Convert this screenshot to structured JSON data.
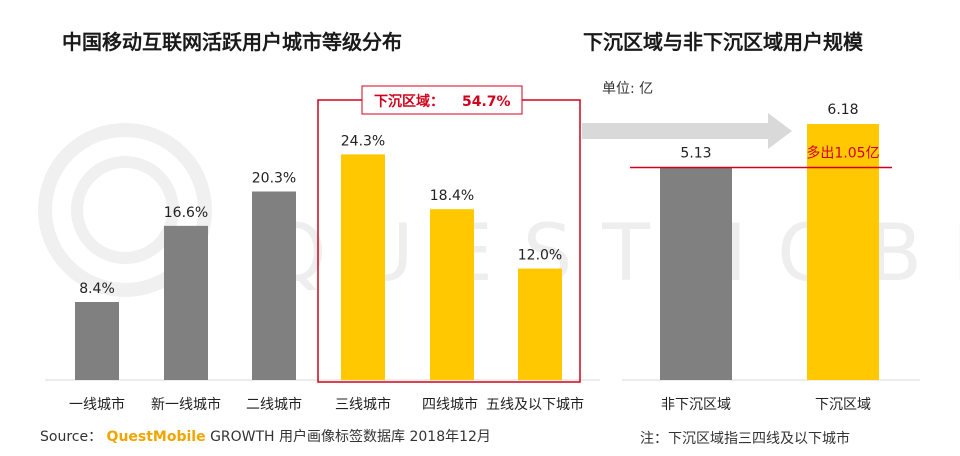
{
  "left_title": "中国移动互联网活跃用户城市等级分布",
  "right_title": "下沉区域与非下沉区域用户规模",
  "unit_label": "单位: 亿",
  "source": {
    "prefix": "Source：",
    "brand": "QuestMobile",
    "rest": "GROWTH 用户画像标签数据库 2018年12月"
  },
  "note": "注：下沉区域指三四线及以下城市",
  "watermark": "QUESTMOBILE",
  "colors": {
    "gray": "#808080",
    "yellow": "#ffc800",
    "highlight": "#d0021b"
  },
  "chart_data": [
    {
      "type": "bar",
      "title": "中国移动互联网活跃用户城市等级分布",
      "categories": [
        "一线城市",
        "新一线城市",
        "二线城市",
        "三线城市",
        "四线城市",
        "五线及以下城市"
      ],
      "values": [
        8.4,
        16.6,
        20.3,
        24.3,
        18.4,
        12.0
      ],
      "value_labels": [
        "8.4%",
        "16.6%",
        "20.3%",
        "24.3%",
        "18.4%",
        "12.0%"
      ],
      "unit": "%",
      "bar_colors": [
        "gray",
        "gray",
        "gray",
        "yellow",
        "yellow",
        "yellow"
      ],
      "annotation": {
        "label": "下沉区域：",
        "value": "54.7%",
        "covers": [
          "三线城市",
          "四线城市",
          "五线及以下城市"
        ]
      },
      "ylim": [
        0,
        28
      ]
    },
    {
      "type": "bar",
      "title": "下沉区域与非下沉区域用户规模",
      "categories": [
        "非下沉区域",
        "下沉区域"
      ],
      "values": [
        5.13,
        6.18
      ],
      "value_labels": [
        "5.13",
        "6.18"
      ],
      "unit": "亿",
      "bar_colors": [
        "gray",
        "yellow"
      ],
      "annotation": {
        "label": "多出1.05亿"
      },
      "ylim": [
        0,
        7
      ]
    }
  ]
}
